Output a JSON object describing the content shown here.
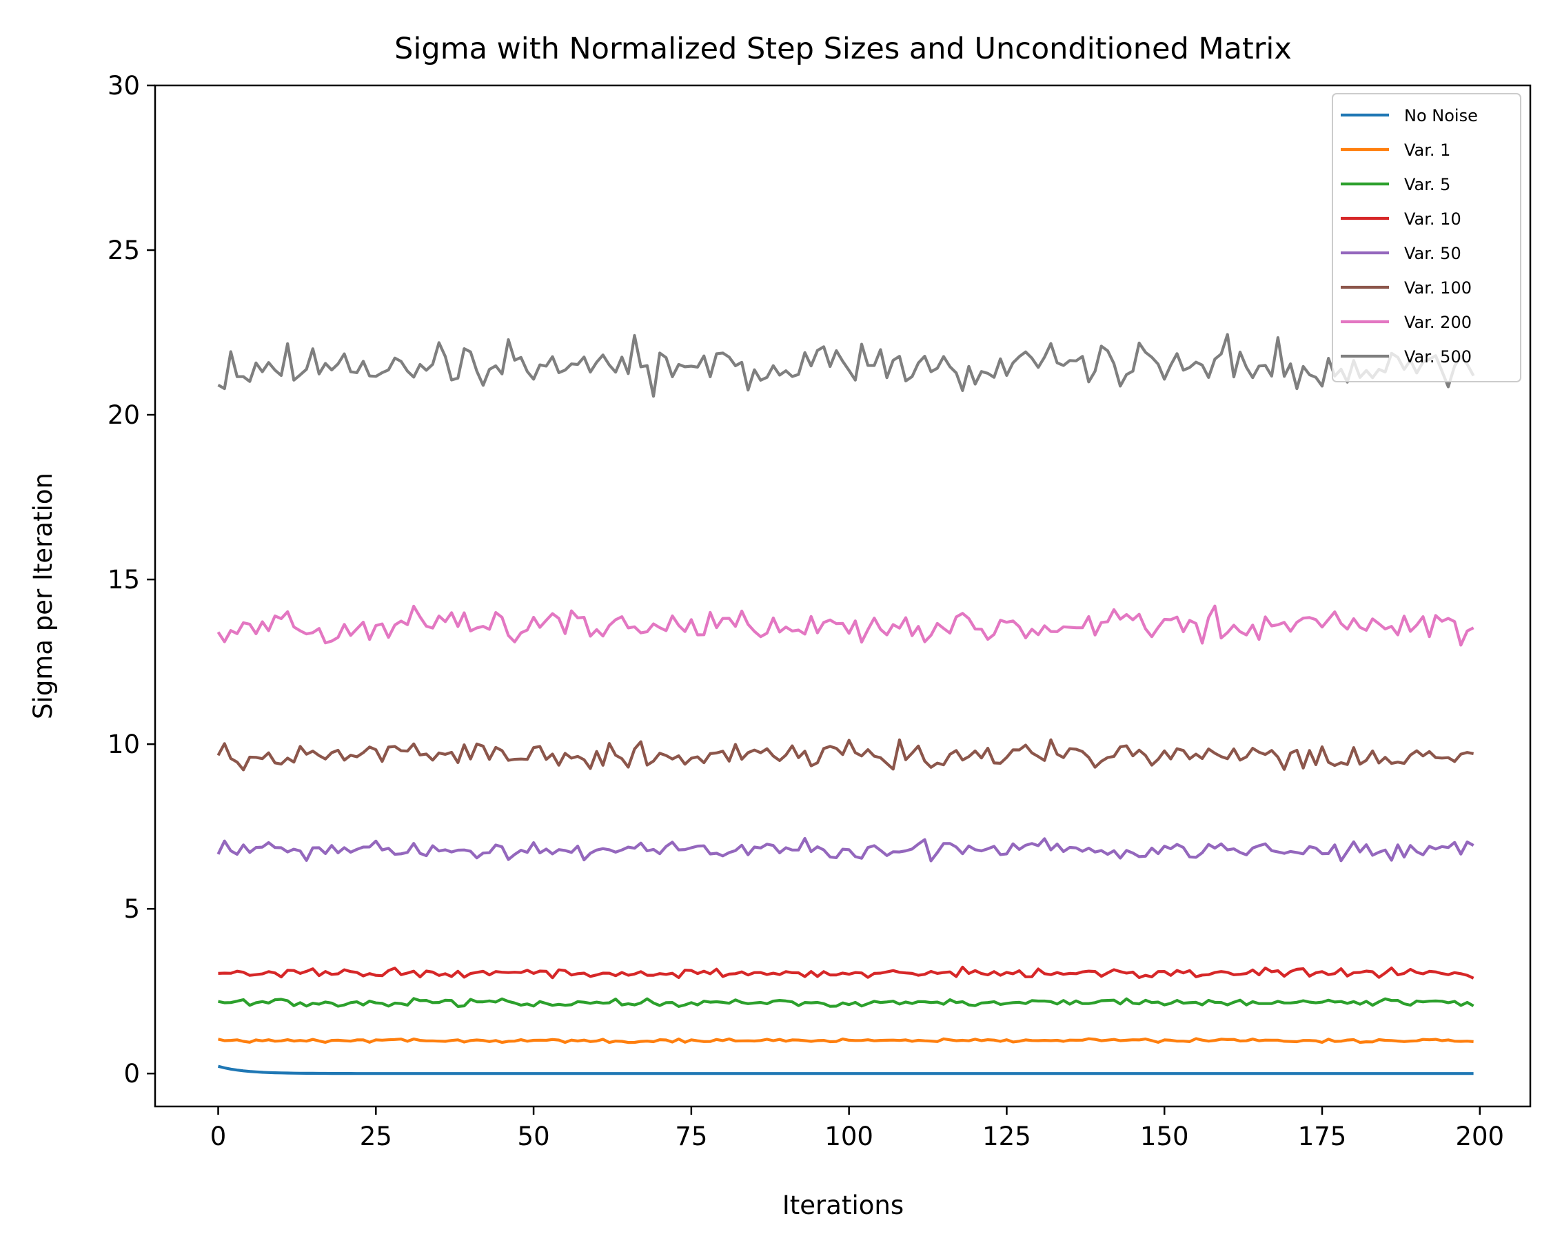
{
  "chart_data": {
    "type": "line",
    "title": "Sigma with Normalized Step Sizes and Unconditioned Matrix",
    "xlabel": "Iterations",
    "ylabel": "Sigma per Iteration",
    "xlim": [
      -10,
      208
    ],
    "ylim": [
      -1,
      30
    ],
    "xticks": [
      0,
      25,
      50,
      75,
      100,
      125,
      150,
      175,
      200
    ],
    "yticks": [
      0,
      5,
      10,
      15,
      20,
      25,
      30
    ],
    "grid": false,
    "legend_position": "top-right",
    "x": {
      "start": 0,
      "end": 199,
      "step": 1
    },
    "series": [
      {
        "name": "No Noise",
        "color": "#1f77b4",
        "pattern": "decay",
        "start_value": 0.22,
        "decay_rate": 0.25,
        "floor": 0.0,
        "amplitude": 0.0
      },
      {
        "name": "Var. 1",
        "color": "#ff7f0e",
        "pattern": "noise",
        "mean": 1.0,
        "amplitude": 0.05
      },
      {
        "name": "Var. 5",
        "color": "#2ca02c",
        "pattern": "noise",
        "mean": 2.15,
        "amplitude": 0.1
      },
      {
        "name": "Var. 10",
        "color": "#d62728",
        "pattern": "noise",
        "mean": 3.05,
        "amplitude": 0.12
      },
      {
        "name": "Var. 50",
        "color": "#9467bd",
        "pattern": "noise",
        "mean": 6.8,
        "amplitude": 0.25
      },
      {
        "name": "Var. 100",
        "color": "#8c564b",
        "pattern": "noise",
        "mean": 9.65,
        "amplitude": 0.35
      },
      {
        "name": "Var. 200",
        "color": "#e377c2",
        "pattern": "noise",
        "mean": 13.6,
        "amplitude": 0.45
      },
      {
        "name": "Var. 500",
        "color": "#7f7f7f",
        "pattern": "noise",
        "mean": 21.5,
        "amplitude": 0.65
      }
    ]
  }
}
